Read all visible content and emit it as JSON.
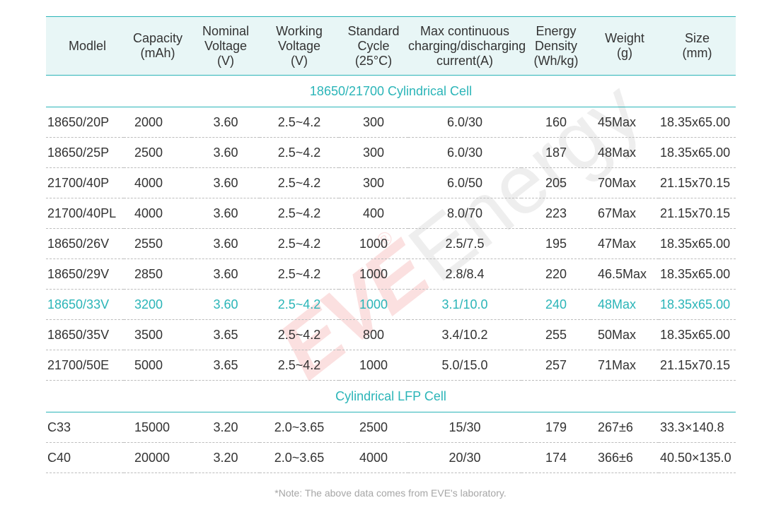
{
  "headers": {
    "model": "Modlel",
    "capacity": "Capacity\n(mAh)",
    "nominal": "Nominal\nVoltage\n(V)",
    "working": "Working\nVoltage\n(V)",
    "cycle": "Standard\nCycle\n(25°C)",
    "current": "Max continuous\ncharging/discharging\ncurrent(A)",
    "energy": "Energy\nDensity\n(Wh/kg)",
    "weight": "Weight\n(g)",
    "size": "Size\n(mm)"
  },
  "sections": [
    {
      "title": "18650/21700 Cylindrical Cell",
      "rows": [
        {
          "model": "18650/20P",
          "capacity": "2000",
          "nominal": "3.60",
          "working": "2.5~4.2",
          "cycle": "300",
          "current": "6.0/30",
          "energy": "160",
          "weight": "45Max",
          "size": "18.35x65.00"
        },
        {
          "model": "18650/25P",
          "capacity": "2500",
          "nominal": "3.60",
          "working": "2.5~4.2",
          "cycle": "300",
          "current": "6.0/30",
          "energy": "187",
          "weight": "48Max",
          "size": "18.35x65.00"
        },
        {
          "model": "21700/40P",
          "capacity": "4000",
          "nominal": "3.60",
          "working": "2.5~4.2",
          "cycle": "300",
          "current": "6.0/50",
          "energy": "205",
          "weight": "70Max",
          "size": "21.15x70.15"
        },
        {
          "model": "21700/40PL",
          "capacity": "4000",
          "nominal": "3.60",
          "working": "2.5~4.2",
          "cycle": "400",
          "current": "8.0/70",
          "energy": "223",
          "weight": "67Max",
          "size": "21.15x70.15"
        },
        {
          "model": "18650/26V",
          "capacity": "2550",
          "nominal": "3.60",
          "working": "2.5~4.2",
          "cycle": "1000",
          "current": "2.5/7.5",
          "energy": "195",
          "weight": "47Max",
          "size": "18.35x65.00"
        },
        {
          "model": "18650/29V",
          "capacity": "2850",
          "nominal": "3.60",
          "working": "2.5~4.2",
          "cycle": "1000",
          "current": "2.8/8.4",
          "energy": "220",
          "weight": "46.5Max",
          "size": "18.35x65.00"
        },
        {
          "model": "18650/33V",
          "capacity": "3200",
          "nominal": "3.60",
          "working": "2.5~4.2",
          "cycle": "1000",
          "current": "3.1/10.0",
          "energy": "240",
          "weight": "48Max",
          "size": "18.35x65.00"
        },
        {
          "model": "18650/35V",
          "capacity": "3500",
          "nominal": "3.65",
          "working": "2.5~4.2",
          "cycle": "800",
          "current": "3.4/10.2",
          "energy": "255",
          "weight": "50Max",
          "size": "18.35x65.00"
        },
        {
          "model": "21700/50E",
          "capacity": "5000",
          "nominal": "3.65",
          "working": "2.5~4.2",
          "cycle": "1000",
          "current": "5.0/15.0",
          "energy": "257",
          "weight": "71Max",
          "size": "21.15x70.15"
        }
      ]
    },
    {
      "title": "Cylindrical LFP Cell",
      "rows": [
        {
          "model": "C33",
          "capacity": "15000",
          "nominal": "3.20",
          "working": "2.0~3.65",
          "cycle": "2500",
          "current": "15/30",
          "energy": "179",
          "weight": "267±6",
          "size": "33.3×140.8"
        },
        {
          "model": "C40",
          "capacity": "20000",
          "nominal": "3.20",
          "working": "2.0~3.65",
          "cycle": "4000",
          "current": "20/30",
          "energy": "174",
          "weight": "366±6",
          "size": "40.50×135.0"
        }
      ]
    }
  ],
  "highlight_model": "18650/33V",
  "note": "*Note: The above data comes from EVE's laboratory.",
  "watermark": {
    "brand": "EVE",
    "registered": "®",
    "word": "Energy"
  },
  "colors": {
    "accent": "#2bb5b8",
    "header_bg": "#e8f6f6",
    "text": "#333333",
    "watermark": "#e63c3c"
  }
}
